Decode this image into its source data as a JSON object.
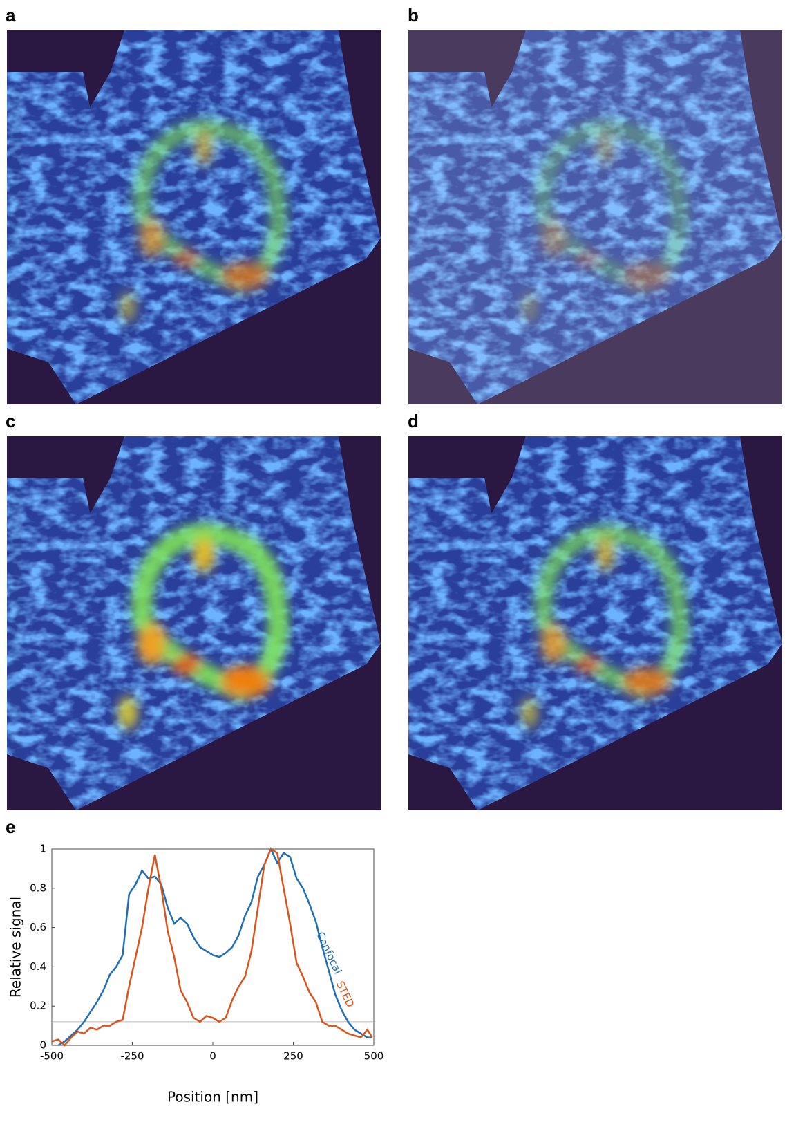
{
  "panel_labels": [
    "a",
    "b",
    "c",
    "d",
    "e"
  ],
  "chart_data": {
    "type": "line",
    "xlabel": "Position [nm]",
    "ylabel": "Relative signal",
    "xlim": [
      -500,
      500
    ],
    "xticks": [
      -500,
      -250,
      0,
      250,
      500
    ],
    "ylim": [
      0,
      1
    ],
    "yticks": [
      0,
      0.2,
      0.4,
      0.6,
      0.8,
      1
    ],
    "reference_line": 0.12,
    "x": [
      -500,
      -480,
      -460,
      -440,
      -420,
      -400,
      -380,
      -360,
      -340,
      -320,
      -300,
      -280,
      -260,
      -240,
      -220,
      -200,
      -180,
      -160,
      -140,
      -120,
      -100,
      -80,
      -60,
      -40,
      -20,
      0,
      20,
      40,
      60,
      80,
      100,
      120,
      140,
      160,
      180,
      200,
      220,
      240,
      260,
      280,
      300,
      320,
      340,
      360,
      380,
      400,
      420,
      440,
      460,
      480,
      495
    ],
    "series": [
      {
        "name": "Confocal",
        "color": "#1f6fb4",
        "values": [
          null,
          0.0,
          0.02,
          0.05,
          0.08,
          0.12,
          0.17,
          0.22,
          0.28,
          0.36,
          0.4,
          0.46,
          0.77,
          0.82,
          0.89,
          0.85,
          0.86,
          0.82,
          0.7,
          0.62,
          0.65,
          0.62,
          0.55,
          0.5,
          0.48,
          0.46,
          0.45,
          0.47,
          0.5,
          0.56,
          0.66,
          0.73,
          0.86,
          0.92,
          1.0,
          0.93,
          0.98,
          0.96,
          0.85,
          0.8,
          0.72,
          0.63,
          0.5,
          0.38,
          0.26,
          0.18,
          0.12,
          0.08,
          0.06,
          0.04,
          0.04
        ]
      },
      {
        "name": "STED",
        "color": "#d9541a",
        "values": [
          0.02,
          0.03,
          0.0,
          0.04,
          0.07,
          0.06,
          0.09,
          0.08,
          0.1,
          0.1,
          0.12,
          0.13,
          0.3,
          0.45,
          0.6,
          0.8,
          0.97,
          0.8,
          0.58,
          0.45,
          0.28,
          0.22,
          0.14,
          0.12,
          0.15,
          0.14,
          0.12,
          0.14,
          0.23,
          0.3,
          0.35,
          0.48,
          0.7,
          0.92,
          1.0,
          0.98,
          0.8,
          0.62,
          0.42,
          0.35,
          0.27,
          0.22,
          0.12,
          0.1,
          0.1,
          0.08,
          0.06,
          0.05,
          0.04,
          0.08,
          0.04
        ]
      }
    ]
  }
}
